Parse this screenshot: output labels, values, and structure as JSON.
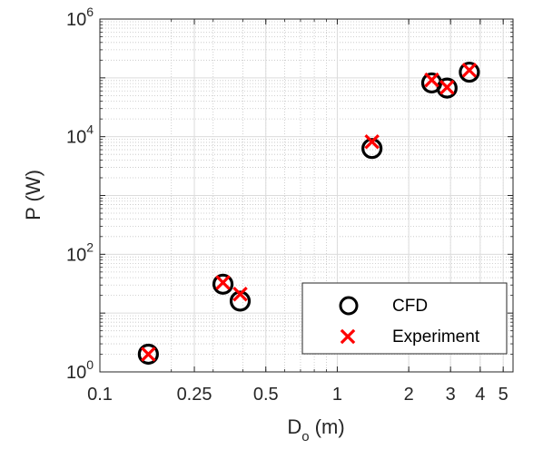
{
  "chart_data": {
    "type": "scatter",
    "xscale": "log",
    "yscale": "log",
    "xlim": [
      0.1,
      5.5
    ],
    "ylim": [
      1,
      1000000
    ],
    "grid": true,
    "minor_grid": true,
    "legend_placement": "bottom-right",
    "xlabel": {
      "main": "D",
      "sub": "o",
      "rest": " (m)"
    },
    "ylabel": "P (W)",
    "x_ticks": [
      {
        "value": 0.1,
        "label": "0.1"
      },
      {
        "value": 0.25,
        "label": "0.25"
      },
      {
        "value": 0.5,
        "label": "0.5"
      },
      {
        "value": 1,
        "label": "1"
      },
      {
        "value": 2,
        "label": "2"
      },
      {
        "value": 3,
        "label": "3"
      },
      {
        "value": 4,
        "label": "4"
      },
      {
        "value": 5,
        "label": "5"
      }
    ],
    "y_ticks": [
      {
        "value": 1,
        "base": "10",
        "exp": "0"
      },
      {
        "value": 100,
        "base": "10",
        "exp": "2"
      },
      {
        "value": 10000,
        "base": "10",
        "exp": "4"
      },
      {
        "value": 1000000,
        "base": "10",
        "exp": "6"
      }
    ],
    "series": [
      {
        "name": "CFD",
        "marker": "circle",
        "color": "#000000",
        "points": [
          {
            "x": 0.16,
            "y": 2.0
          },
          {
            "x": 0.33,
            "y": 31
          },
          {
            "x": 0.39,
            "y": 16
          },
          {
            "x": 1.4,
            "y": 6300
          },
          {
            "x": 2.5,
            "y": 82000
          },
          {
            "x": 2.9,
            "y": 67000
          },
          {
            "x": 3.6,
            "y": 125000
          }
        ]
      },
      {
        "name": "Experiment",
        "marker": "x",
        "color": "#ff0000",
        "points": [
          {
            "x": 0.16,
            "y": 2.0
          },
          {
            "x": 0.33,
            "y": 33
          },
          {
            "x": 0.39,
            "y": 21
          },
          {
            "x": 1.4,
            "y": 8200
          },
          {
            "x": 2.5,
            "y": 92000
          },
          {
            "x": 2.9,
            "y": 69000
          },
          {
            "x": 3.6,
            "y": 135000
          }
        ]
      }
    ]
  }
}
